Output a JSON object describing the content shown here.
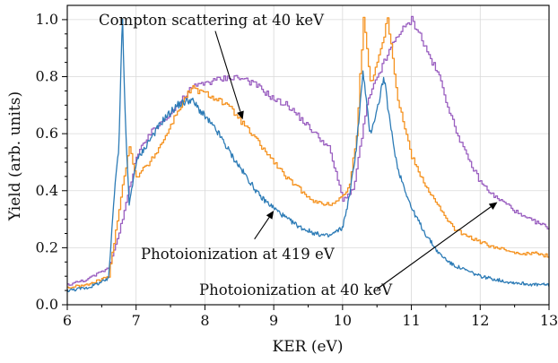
{
  "chart_data": {
    "type": "line",
    "xlabel": "KER (eV)",
    "ylabel": "Yield (arb. units)",
    "xlim": [
      6,
      13
    ],
    "ylim": [
      0,
      1.05
    ],
    "grid": true,
    "xticks": [
      "6",
      "7",
      "8",
      "9",
      "10",
      "11",
      "12",
      "13"
    ],
    "yticks": [
      "0.0",
      "0.2",
      "0.4",
      "0.6",
      "0.8",
      "1.0"
    ],
    "series": [
      {
        "key": "compton",
        "color": "#9a5fc0",
        "step": true,
        "x": [
          6.0,
          6.3,
          6.6,
          6.8,
          7.0,
          7.2,
          7.4,
          7.6,
          7.8,
          8.0,
          8.2,
          8.4,
          8.6,
          8.8,
          9.0,
          9.2,
          9.4,
          9.6,
          9.8,
          10.0,
          10.15,
          10.25,
          10.35,
          10.5,
          10.6,
          10.7,
          10.8,
          10.9,
          11.0,
          11.1,
          11.2,
          11.3,
          11.4,
          11.5,
          11.6,
          11.8,
          12.0,
          12.2,
          12.4,
          12.6,
          12.8,
          13.0
        ],
        "y": [
          0.07,
          0.09,
          0.13,
          0.3,
          0.52,
          0.6,
          0.65,
          0.7,
          0.76,
          0.78,
          0.79,
          0.8,
          0.79,
          0.76,
          0.72,
          0.7,
          0.65,
          0.6,
          0.55,
          0.37,
          0.4,
          0.55,
          0.7,
          0.8,
          0.85,
          0.9,
          0.95,
          0.97,
          1.0,
          0.96,
          0.9,
          0.85,
          0.8,
          0.72,
          0.64,
          0.52,
          0.43,
          0.38,
          0.35,
          0.31,
          0.29,
          0.27
        ]
      },
      {
        "key": "photo419",
        "color": "#f5921f",
        "step": true,
        "x": [
          6.0,
          6.3,
          6.6,
          6.8,
          6.9,
          7.0,
          7.2,
          7.4,
          7.6,
          7.8,
          8.0,
          8.2,
          8.4,
          8.6,
          8.8,
          9.0,
          9.2,
          9.4,
          9.6,
          9.8,
          10.0,
          10.1,
          10.2,
          10.3,
          10.35,
          10.4,
          10.5,
          10.6,
          10.65,
          10.7,
          10.8,
          11.0,
          11.2,
          11.4,
          11.6,
          11.8,
          12.0,
          12.2,
          12.4,
          12.6,
          12.8,
          13.0
        ],
        "y": [
          0.06,
          0.07,
          0.1,
          0.42,
          0.55,
          0.45,
          0.5,
          0.58,
          0.68,
          0.76,
          0.74,
          0.72,
          0.68,
          0.62,
          0.56,
          0.5,
          0.44,
          0.4,
          0.36,
          0.35,
          0.38,
          0.42,
          0.6,
          1.0,
          0.9,
          0.78,
          0.85,
          0.95,
          1.0,
          0.92,
          0.72,
          0.52,
          0.42,
          0.34,
          0.27,
          0.24,
          0.22,
          0.2,
          0.19,
          0.18,
          0.18,
          0.17
        ]
      },
      {
        "key": "photo40",
        "color": "#2c7bb6",
        "step": false,
        "x": [
          6.0,
          6.3,
          6.6,
          6.7,
          6.75,
          6.8,
          6.85,
          6.9,
          7.0,
          7.2,
          7.4,
          7.6,
          7.8,
          8.0,
          8.2,
          8.4,
          8.6,
          8.8,
          9.0,
          9.2,
          9.4,
          9.6,
          9.8,
          10.0,
          10.1,
          10.2,
          10.3,
          10.35,
          10.4,
          10.5,
          10.6,
          10.7,
          10.8,
          11.0,
          11.2,
          11.4,
          11.6,
          11.8,
          12.0,
          12.2,
          12.4,
          12.6,
          12.8,
          13.0
        ],
        "y": [
          0.05,
          0.06,
          0.09,
          0.45,
          0.55,
          1.02,
          0.6,
          0.35,
          0.5,
          0.58,
          0.65,
          0.7,
          0.72,
          0.66,
          0.6,
          0.52,
          0.45,
          0.38,
          0.34,
          0.3,
          0.27,
          0.25,
          0.24,
          0.27,
          0.38,
          0.55,
          0.82,
          0.7,
          0.6,
          0.68,
          0.8,
          0.62,
          0.48,
          0.34,
          0.25,
          0.18,
          0.14,
          0.12,
          0.1,
          0.09,
          0.08,
          0.075,
          0.07,
          0.07
        ]
      }
    ],
    "annotations": [
      {
        "key": "compton",
        "text": "Compton scattering at 40 keV",
        "arrow_from": [
          8.15,
          0.96
        ],
        "arrow_to": [
          8.55,
          0.65
        ]
      },
      {
        "key": "photo419",
        "text": "Photoionization at 419 eV",
        "arrow_from": [
          8.72,
          0.23
        ],
        "arrow_to": [
          9.0,
          0.33
        ]
      },
      {
        "key": "photo40",
        "text": "Photoionization at 40 keV",
        "arrow_from": [
          10.5,
          0.055
        ],
        "arrow_to": [
          12.25,
          0.36
        ]
      }
    ]
  }
}
